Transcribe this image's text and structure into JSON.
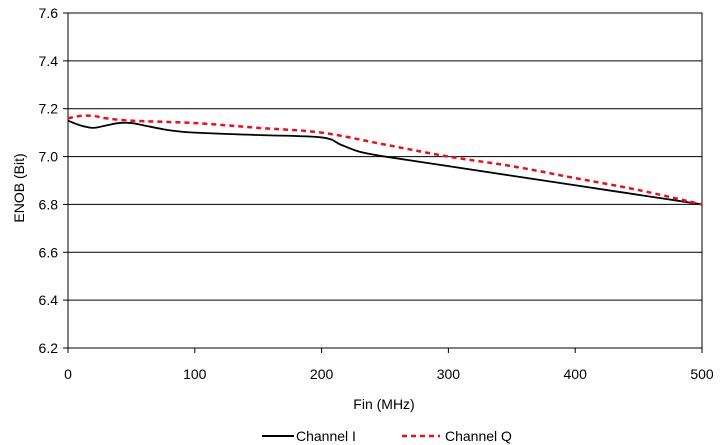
{
  "chart_data": {
    "type": "line",
    "xlabel": "Fin (MHz)",
    "ylabel": "ENOB (Bit)",
    "xlim": [
      0,
      500
    ],
    "ylim": [
      6.2,
      7.6
    ],
    "xticks": [
      "0",
      "100",
      "200",
      "300",
      "400",
      "500"
    ],
    "yticks": [
      "6.2",
      "6.4",
      "6.6",
      "6.8",
      "7.0",
      "7.2",
      "7.4",
      "7.6"
    ],
    "grid": "horizontal",
    "legend_position": "bottom",
    "series": [
      {
        "name": "Channel I",
        "color": "#000000",
        "style": "solid",
        "x": [
          0,
          10,
          20,
          30,
          40,
          50,
          60,
          80,
          100,
          150,
          200,
          215,
          230,
          250,
          300,
          350,
          400,
          450,
          500
        ],
        "y": [
          7.15,
          7.13,
          7.12,
          7.13,
          7.14,
          7.14,
          7.13,
          7.11,
          7.1,
          7.09,
          7.08,
          7.05,
          7.02,
          7.0,
          6.96,
          6.92,
          6.88,
          6.84,
          6.8
        ]
      },
      {
        "name": "Channel Q",
        "color": "#e8101c",
        "style": "dashed",
        "x": [
          0,
          10,
          20,
          30,
          50,
          100,
          150,
          200,
          250,
          300,
          350,
          400,
          450,
          500
        ],
        "y": [
          7.16,
          7.17,
          7.17,
          7.16,
          7.15,
          7.14,
          7.12,
          7.1,
          7.05,
          7.0,
          6.96,
          6.91,
          6.86,
          6.8
        ]
      }
    ]
  }
}
